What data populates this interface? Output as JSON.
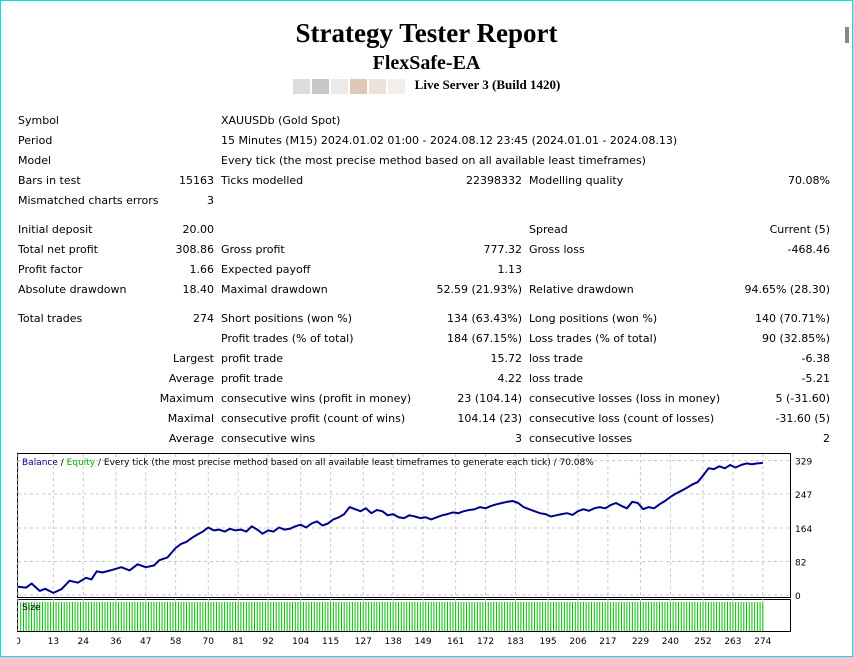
{
  "header": {
    "title": "Strategy Tester Report",
    "ea_name": "FlexSafe-EA",
    "server": "Live Server 3 (Build 1420)"
  },
  "colors": {
    "balance": "#00008b",
    "equity": "#00b000",
    "grid": "#c8c8c8",
    "volume": "#00c000",
    "privacy_blocks": [
      "#dcdcdc",
      "#c8c8c8",
      "#ebebeb",
      "#e0c8b8",
      "#eee2d8",
      "#f4eee8"
    ]
  },
  "summary": {
    "symbol": {
      "label": "Symbol",
      "value": "XAUUSDb (Gold Spot)"
    },
    "period": {
      "label": "Period",
      "value": "15 Minutes (M15) 2024.01.02 01:00 - 2024.08.12 23:45 (2024.01.01 - 2024.08.13)"
    },
    "model": {
      "label": "Model",
      "value": "Every tick (the most precise method based on all available least timeframes)"
    },
    "bars": {
      "label": "Bars in test",
      "value": "15163"
    },
    "ticks": {
      "label": "Ticks modelled",
      "value": "22398332"
    },
    "quality": {
      "label": "Modelling quality",
      "value": "70.08%"
    },
    "mismatched": {
      "label": "Mismatched charts errors",
      "value": "3"
    },
    "initial_deposit": {
      "label": "Initial deposit",
      "value": "20.00"
    },
    "spread": {
      "label": "Spread",
      "value": "Current (5)"
    },
    "net_profit": {
      "label": "Total net profit",
      "value": "308.86"
    },
    "gross_profit": {
      "label": "Gross profit",
      "value": "777.32"
    },
    "gross_loss": {
      "label": "Gross loss",
      "value": "-468.46"
    },
    "profit_factor": {
      "label": "Profit factor",
      "value": "1.66"
    },
    "expected_payoff": {
      "label": "Expected payoff",
      "value": "1.13"
    },
    "abs_dd": {
      "label": "Absolute drawdown",
      "value": "18.40"
    },
    "max_dd": {
      "label": "Maximal drawdown",
      "value": "52.59 (21.93%)"
    },
    "rel_dd": {
      "label": "Relative drawdown",
      "value": "94.65% (28.30)"
    },
    "total_trades": {
      "label": "Total trades",
      "value": "274"
    },
    "short_pos": {
      "label": "Short positions (won %)",
      "value": "134 (63.43%)"
    },
    "long_pos": {
      "label": "Long positions (won %)",
      "value": "140 (70.71%)"
    },
    "profit_trades": {
      "label": "Profit trades (% of total)",
      "value": "184 (67.15%)"
    },
    "loss_trades": {
      "label": "Loss trades (% of total)",
      "value": "90 (32.85%)"
    },
    "largest": {
      "label": "Largest",
      "profit_label": "profit trade",
      "profit_value": "15.72",
      "loss_label": "loss trade",
      "loss_value": "-6.38"
    },
    "average": {
      "label": "Average",
      "profit_label": "profit trade",
      "profit_value": "4.22",
      "loss_label": "loss trade",
      "loss_value": "-5.21"
    },
    "maximum": {
      "label": "Maximum",
      "wins_label": "consecutive wins (profit in money)",
      "wins_value": "23 (104.14)",
      "losses_label": "consecutive losses (loss in money)",
      "losses_value": "5 (-31.60)"
    },
    "maximal": {
      "label": "Maximal",
      "profit_label": "consecutive profit (count of wins)",
      "profit_value": "104.14 (23)",
      "loss_label": "consecutive loss (count of losses)",
      "loss_value": "-31.60 (5)"
    },
    "average_consec": {
      "label": "Average",
      "wins_label": "consecutive wins",
      "wins_value": "3",
      "losses_label": "consecutive losses",
      "losses_value": "2"
    }
  },
  "chart_data": {
    "type": "line",
    "legend": {
      "balance": "Balance",
      "sep": " / ",
      "equity": "Equity",
      "rest": " / Every tick (the most precise method based on all available least timeframes to generate each tick) / 70.08%"
    },
    "xlabel": "",
    "ylabel": "",
    "y_ticks": [
      0,
      82,
      164,
      247,
      329
    ],
    "x_ticks": [
      0,
      13,
      24,
      36,
      47,
      58,
      70,
      81,
      92,
      104,
      115,
      127,
      138,
      149,
      161,
      172,
      183,
      195,
      206,
      217,
      229,
      240,
      252,
      263,
      274
    ],
    "xlim": [
      0,
      284
    ],
    "ylim": [
      -5,
      345
    ],
    "volume_label": "Size",
    "series": [
      {
        "name": "Balance",
        "x": [
          0,
          3,
          5,
          8,
          10,
          13,
          16,
          19,
          22,
          25,
          27,
          29,
          31,
          34,
          38,
          41,
          44,
          47,
          50,
          52,
          55,
          58,
          60,
          62,
          64,
          66,
          68,
          70,
          72,
          74,
          76,
          78,
          80,
          82,
          84,
          86,
          88,
          90,
          92,
          94,
          96,
          98,
          100,
          102,
          104,
          106,
          108,
          110,
          112,
          114,
          116,
          118,
          120,
          122,
          124,
          126,
          128,
          130,
          132,
          134,
          136,
          138,
          140,
          142,
          144,
          146,
          148,
          150,
          152,
          154,
          156,
          158,
          160,
          162,
          164,
          166,
          168,
          170,
          172,
          174,
          176,
          178,
          180,
          182,
          184,
          186,
          188,
          190,
          192,
          194,
          196,
          198,
          200,
          202,
          204,
          206,
          208,
          210,
          212,
          214,
          216,
          218,
          220,
          222,
          224,
          226,
          228,
          230,
          232,
          234,
          236,
          238,
          240,
          242,
          244,
          246,
          248,
          250,
          252,
          254,
          256,
          258,
          260,
          262,
          264,
          266,
          268,
          270,
          272,
          274
        ],
        "y": [
          20,
          18,
          28,
          10,
          15,
          5,
          14,
          35,
          30,
          42,
          38,
          58,
          55,
          60,
          68,
          60,
          75,
          68,
          72,
          85,
          92,
          115,
          125,
          130,
          140,
          148,
          155,
          165,
          158,
          160,
          155,
          162,
          158,
          160,
          155,
          168,
          160,
          150,
          158,
          155,
          165,
          160,
          162,
          168,
          172,
          165,
          175,
          180,
          170,
          175,
          185,
          190,
          198,
          215,
          210,
          205,
          212,
          200,
          208,
          205,
          195,
          198,
          190,
          188,
          195,
          192,
          188,
          190,
          185,
          190,
          195,
          198,
          202,
          200,
          205,
          208,
          210,
          215,
          212,
          218,
          222,
          225,
          228,
          230,
          225,
          215,
          210,
          205,
          200,
          198,
          192,
          195,
          198,
          200,
          196,
          205,
          210,
          206,
          212,
          215,
          212,
          220,
          225,
          218,
          212,
          228,
          225,
          210,
          215,
          212,
          222,
          230,
          240,
          248,
          255,
          262,
          270,
          276,
          292,
          310,
          308,
          315,
          310,
          318,
          312,
          318,
          322,
          320,
          322,
          323
        ]
      }
    ]
  }
}
